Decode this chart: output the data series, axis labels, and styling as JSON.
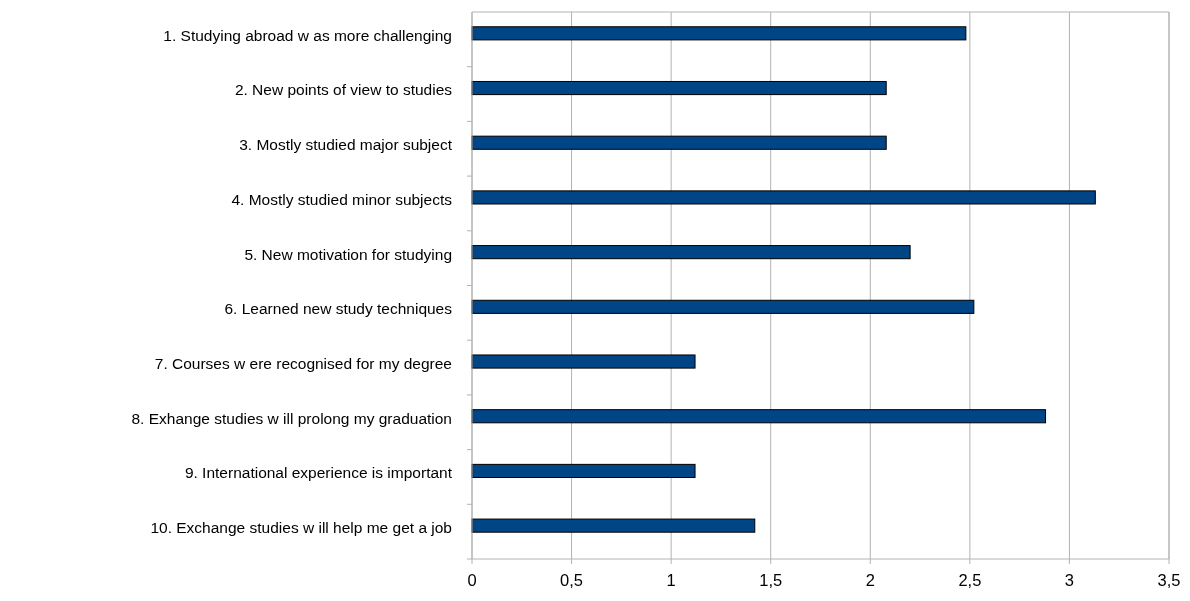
{
  "chart_data": {
    "type": "bar",
    "orientation": "horizontal",
    "categories": [
      "1. Studying abroad w as more challenging",
      "2. New  points of view to studies",
      "3. Mostly studied major subject",
      "4. Mostly studied minor subjects",
      "5. New  motivation for studying",
      "6. Learned new  study techniques",
      "7. Courses w ere recognised for my degree",
      "8. Exhange studies w ill prolong my graduation",
      "9. International experience is important",
      "10. Exchange studies w ill help me get a job"
    ],
    "values": [
      2.48,
      2.08,
      2.08,
      3.13,
      2.2,
      2.52,
      1.12,
      2.88,
      1.12,
      1.42
    ],
    "color": "#004586",
    "xlim": [
      0,
      3.5
    ],
    "xticks": [
      0,
      {
        "value": 0.5,
        "label": "0,5"
      },
      1,
      {
        "value": 1.5,
        "label": "1,5"
      },
      2,
      {
        "value": 2.5,
        "label": "2,5"
      },
      3,
      {
        "value": 3.5,
        "label": "3,5"
      }
    ],
    "grid": "x"
  }
}
